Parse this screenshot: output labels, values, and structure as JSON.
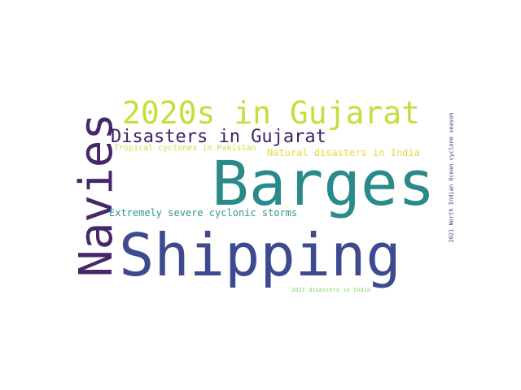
{
  "words": [
    {
      "text": "Barges",
      "color": "#2a8a8a"
    },
    {
      "text": "Shipping",
      "color": "#3e4a8f"
    },
    {
      "text": "Navies",
      "color": "#46276a"
    },
    {
      "text": "2020s in Gujarat",
      "color": "#c8dc3a"
    },
    {
      "text": "Disasters in Gujarat",
      "color": "#3f2365"
    },
    {
      "text": "Natural disasters in India",
      "color": "#e3d946"
    },
    {
      "text": "Tropical cyclones in Pakistan",
      "color": "#c8e04c"
    },
    {
      "text": "Extremely severe cyclonic storms",
      "color": "#2f948c"
    },
    {
      "text": "2021 disasters in India",
      "color": "#7ed457"
    },
    {
      "text": "2021 North Indian Ocean cyclone season",
      "color": "#46337e"
    }
  ]
}
